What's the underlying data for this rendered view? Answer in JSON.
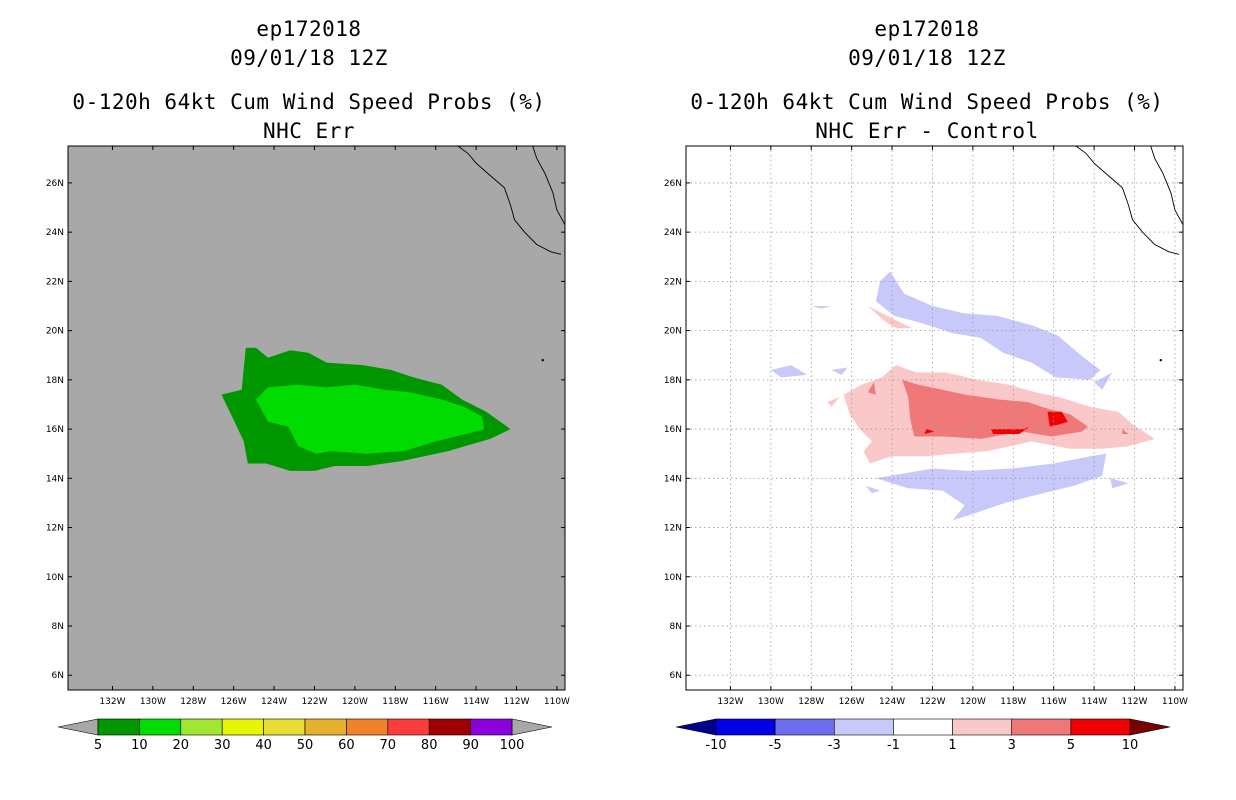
{
  "chart_data": [
    {
      "type": "heatmap",
      "title_lines": [
        "ep172018",
        "09/01/18 12Z",
        "0-120h 64kt Cum Wind Speed Probs (%)",
        "NHC Err"
      ],
      "x_ticks": [
        "132W",
        "130W",
        "128W",
        "126W",
        "124W",
        "122W",
        "120W",
        "118W",
        "116W",
        "114W",
        "112W",
        "110W"
      ],
      "y_ticks": [
        "6N",
        "8N",
        "10N",
        "12N",
        "14N",
        "16N",
        "18N",
        "20N",
        "22N",
        "24N",
        "26N"
      ],
      "xlim": [
        -134.2,
        -109.6
      ],
      "ylim": [
        5.4,
        27.5
      ],
      "background": "#a8a8a8",
      "grid": false,
      "colorbar": {
        "labels": [
          "5",
          "10",
          "20",
          "30",
          "40",
          "50",
          "60",
          "70",
          "80",
          "90",
          "100"
        ],
        "colors": [
          "#009600",
          "#00dc00",
          "#a0e632",
          "#e6f500",
          "#e6dc32",
          "#e6af2d",
          "#f08228",
          "#fa3c3c",
          "#a00000",
          "#8c00dc"
        ],
        "end_colors": [
          "#a8a8a8",
          "#a8a8a8"
        ]
      },
      "regions": [
        {
          "level": "5-10",
          "color": "#009600",
          "polygon": [
            [
              -126.6,
              17.4
            ],
            [
              -125.6,
              17.6
            ],
            [
              -125.4,
              19.3
            ],
            [
              -124.9,
              19.3
            ],
            [
              -124.3,
              18.9
            ],
            [
              -123.2,
              19.2
            ],
            [
              -122.3,
              19.1
            ],
            [
              -121.4,
              18.7
            ],
            [
              -119.6,
              18.6
            ],
            [
              -118.2,
              18.4
            ],
            [
              -117.1,
              18.1
            ],
            [
              -115.7,
              17.8
            ],
            [
              -114.7,
              17.2
            ],
            [
              -113.5,
              16.7
            ],
            [
              -112.3,
              16.0
            ],
            [
              -113.3,
              15.6
            ],
            [
              -115.4,
              15.1
            ],
            [
              -117.7,
              14.7
            ],
            [
              -119.4,
              14.5
            ],
            [
              -121.0,
              14.5
            ],
            [
              -122.0,
              14.3
            ],
            [
              -123.2,
              14.3
            ],
            [
              -124.4,
              14.6
            ],
            [
              -125.3,
              14.6
            ],
            [
              -125.5,
              15.5
            ],
            [
              -125.9,
              16.2
            ]
          ]
        },
        {
          "level": "10-20",
          "color": "#00dc00",
          "polygon": [
            [
              -124.9,
              17.2
            ],
            [
              -124.3,
              17.7
            ],
            [
              -122.8,
              17.8
            ],
            [
              -121.4,
              17.7
            ],
            [
              -120.0,
              17.8
            ],
            [
              -118.5,
              17.6
            ],
            [
              -117.3,
              17.5
            ],
            [
              -115.7,
              17.2
            ],
            [
              -114.6,
              16.9
            ],
            [
              -113.7,
              16.5
            ],
            [
              -113.6,
              16.0
            ],
            [
              -114.5,
              15.8
            ],
            [
              -116.0,
              15.5
            ],
            [
              -117.6,
              15.1
            ],
            [
              -119.4,
              15.0
            ],
            [
              -121.2,
              15.1
            ],
            [
              -121.9,
              15.0
            ],
            [
              -122.8,
              15.3
            ],
            [
              -123.3,
              16.1
            ],
            [
              -124.3,
              16.3
            ]
          ]
        }
      ]
    },
    {
      "type": "heatmap",
      "title_lines": [
        "ep172018",
        "09/01/18 12Z",
        "0-120h 64kt Cum Wind Speed Probs (%)",
        "NHC Err - Control"
      ],
      "x_ticks": [
        "132W",
        "130W",
        "128W",
        "126W",
        "124W",
        "122W",
        "120W",
        "118W",
        "116W",
        "114W",
        "112W",
        "110W"
      ],
      "y_ticks": [
        "6N",
        "8N",
        "10N",
        "12N",
        "14N",
        "16N",
        "18N",
        "20N",
        "22N",
        "24N",
        "26N"
      ],
      "xlim": [
        -134.2,
        -109.6
      ],
      "ylim": [
        5.4,
        27.5
      ],
      "background": "#ffffff",
      "grid": true,
      "colorbar": {
        "labels": [
          "-10",
          "-5",
          "-3",
          "-1",
          "1",
          "3",
          "5",
          "10"
        ],
        "colors": [
          "#0000e6",
          "#6e6ef0",
          "#c8c8fa",
          "#ffffff",
          "#fac8c8",
          "#f07878",
          "#f00000"
        ],
        "end_colors": [
          "#00008c",
          "#780000"
        ]
      },
      "regions": [
        {
          "level": "-3 to -1",
          "color": "#c8c8fa",
          "polygon": [
            [
              -124.8,
              21.2
            ],
            [
              -123.9,
              20.6
            ],
            [
              -122.5,
              20.3
            ],
            [
              -121.0,
              19.9
            ],
            [
              -119.6,
              19.7
            ],
            [
              -118.5,
              19.1
            ],
            [
              -117.1,
              18.7
            ],
            [
              -115.9,
              18.1
            ],
            [
              -114.2,
              18.0
            ],
            [
              -113.7,
              18.4
            ],
            [
              -114.5,
              18.9
            ],
            [
              -115.8,
              19.8
            ],
            [
              -117.0,
              20.2
            ],
            [
              -118.8,
              20.6
            ],
            [
              -120.4,
              20.7
            ],
            [
              -122.0,
              21.0
            ],
            [
              -123.4,
              21.5
            ],
            [
              -124.1,
              22.4
            ],
            [
              -124.6,
              22.0
            ]
          ]
        },
        {
          "level": "-3 to -1",
          "color": "#c8c8fa",
          "polygon": [
            [
              -124.8,
              14.0
            ],
            [
              -123.4,
              14.2
            ],
            [
              -122.0,
              14.4
            ],
            [
              -120.2,
              14.3
            ],
            [
              -118.1,
              14.4
            ],
            [
              -116.0,
              14.6
            ],
            [
              -114.2,
              14.9
            ],
            [
              -113.4,
              15.0
            ],
            [
              -113.6,
              14.1
            ],
            [
              -115.0,
              13.7
            ],
            [
              -116.5,
              13.4
            ],
            [
              -118.4,
              13.0
            ],
            [
              -120.2,
              12.5
            ],
            [
              -121.0,
              12.3
            ],
            [
              -120.4,
              12.9
            ],
            [
              -121.5,
              13.5
            ],
            [
              -123.2,
              13.6
            ]
          ]
        },
        {
          "level": "-3 to -1",
          "color": "#c8c8fa",
          "polygon": [
            [
              -113.2,
              14.0
            ],
            [
              -112.3,
              13.8
            ],
            [
              -113.1,
              13.6
            ]
          ]
        },
        {
          "level": "-3 to -1",
          "color": "#c8c8fa",
          "polygon": [
            [
              -114.0,
              17.9
            ],
            [
              -113.1,
              18.3
            ],
            [
              -113.6,
              17.6
            ]
          ]
        },
        {
          "level": "-3 to -1",
          "color": "#c8c8fa",
          "polygon": [
            [
              -130.0,
              18.4
            ],
            [
              -129.0,
              18.6
            ],
            [
              -128.2,
              18.2
            ],
            [
              -129.5,
              18.1
            ]
          ]
        },
        {
          "level": "-3 to -1",
          "color": "#c8c8fa",
          "polygon": [
            [
              -127.0,
              18.4
            ],
            [
              -126.2,
              18.5
            ],
            [
              -126.5,
              18.2
            ]
          ]
        },
        {
          "level": "-3 to -1",
          "color": "#c8c8fa",
          "polygon": [
            [
              -128.0,
              21.0
            ],
            [
              -127.0,
              21.0
            ],
            [
              -127.5,
              20.9
            ]
          ]
        },
        {
          "level": "-3 to -1",
          "color": "#c8c8fa",
          "polygon": [
            [
              -125.3,
              13.7
            ],
            [
              -124.6,
              13.5
            ],
            [
              -125.0,
              13.4
            ]
          ]
        },
        {
          "level": "1 to 3",
          "color": "#fac8c8",
          "polygon": [
            [
              -126.4,
              17.4
            ],
            [
              -125.5,
              17.8
            ],
            [
              -124.5,
              18.1
            ],
            [
              -123.8,
              18.6
            ],
            [
              -122.8,
              18.3
            ],
            [
              -121.3,
              18.3
            ],
            [
              -119.8,
              18.0
            ],
            [
              -118.2,
              17.8
            ],
            [
              -116.9,
              17.5
            ],
            [
              -115.7,
              17.3
            ],
            [
              -114.2,
              16.9
            ],
            [
              -112.8,
              16.7
            ],
            [
              -112.1,
              16.2
            ],
            [
              -111.0,
              15.6
            ],
            [
              -112.3,
              15.3
            ],
            [
              -113.6,
              15.2
            ],
            [
              -115.2,
              15.2
            ],
            [
              -117.1,
              15.5
            ],
            [
              -119.3,
              15.1
            ],
            [
              -121.0,
              15.0
            ],
            [
              -122.3,
              14.9
            ],
            [
              -124.0,
              14.9
            ],
            [
              -125.1,
              14.6
            ],
            [
              -125.4,
              15.1
            ],
            [
              -125.0,
              15.5
            ],
            [
              -125.6,
              16.0
            ],
            [
              -126.1,
              16.6
            ]
          ]
        },
        {
          "level": "1 to 3",
          "color": "#fac8c8",
          "polygon": [
            [
              -125.2,
              21.0
            ],
            [
              -124.4,
              20.4
            ],
            [
              -123.8,
              20.1
            ],
            [
              -123.0,
              20.1
            ],
            [
              -124.0,
              20.5
            ]
          ]
        },
        {
          "level": "1 to 3",
          "color": "#fac8c8",
          "polygon": [
            [
              -127.2,
              17.1
            ],
            [
              -126.6,
              17.3
            ],
            [
              -127.0,
              16.9
            ]
          ]
        },
        {
          "level": "3 to 5",
          "color": "#f07878",
          "polygon": [
            [
              -123.5,
              18.0
            ],
            [
              -122.7,
              17.8
            ],
            [
              -121.5,
              17.6
            ],
            [
              -120.4,
              17.4
            ],
            [
              -118.7,
              17.2
            ],
            [
              -117.3,
              17.1
            ],
            [
              -116.2,
              16.8
            ],
            [
              -115.2,
              16.6
            ],
            [
              -114.3,
              16.1
            ],
            [
              -114.6,
              15.9
            ],
            [
              -116.1,
              15.7
            ],
            [
              -117.6,
              15.9
            ],
            [
              -119.6,
              15.6
            ],
            [
              -121.4,
              15.7
            ],
            [
              -122.9,
              15.7
            ],
            [
              -123.1,
              16.4
            ],
            [
              -123.2,
              17.3
            ]
          ]
        },
        {
          "level": "3 to 5",
          "color": "#f07878",
          "polygon": [
            [
              -125.2,
              17.5
            ],
            [
              -124.9,
              17.9
            ],
            [
              -124.8,
              17.4
            ]
          ]
        },
        {
          "level": "3 to 5",
          "color": "#f07878",
          "polygon": [
            [
              -112.6,
              16.0
            ],
            [
              -112.3,
              15.8
            ],
            [
              -112.6,
              15.8
            ]
          ]
        },
        {
          "level": "5 to 10",
          "color": "#f00000",
          "polygon": [
            [
              -116.3,
              16.7
            ],
            [
              -115.6,
              16.7
            ],
            [
              -115.3,
              16.3
            ],
            [
              -115.7,
              16.2
            ],
            [
              -116.2,
              16.1
            ]
          ]
        },
        {
          "level": "5 to 10",
          "color": "#f00000",
          "polygon": [
            [
              -119.1,
              16.0
            ],
            [
              -117.5,
              16.0
            ],
            [
              -117.2,
              16.1
            ],
            [
              -117.7,
              15.8
            ],
            [
              -119.0,
              15.8
            ]
          ]
        },
        {
          "level": "5 to 10",
          "color": "#f00000",
          "polygon": [
            [
              -122.3,
              16.0
            ],
            [
              -121.9,
              15.9
            ],
            [
              -122.4,
              15.8
            ]
          ]
        }
      ]
    }
  ]
}
